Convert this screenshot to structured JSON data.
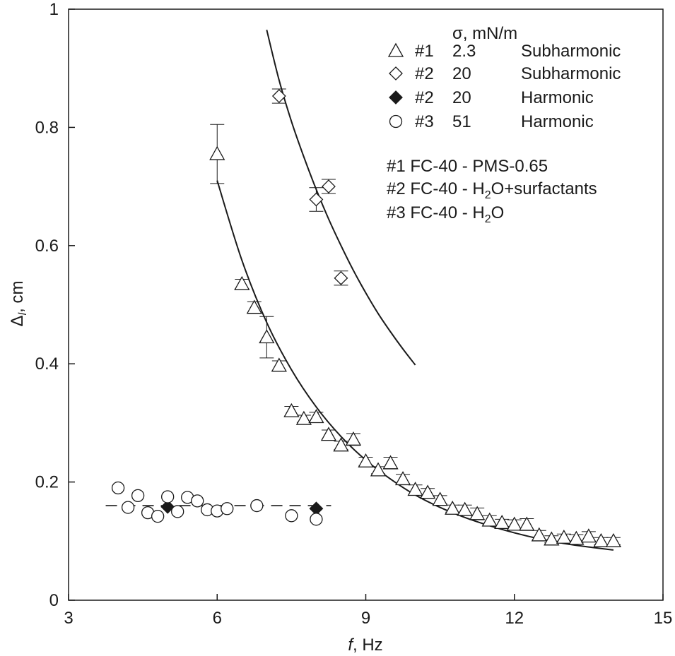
{
  "chart_data": {
    "type": "scatter",
    "xlabel": {
      "italic": "f",
      "rest": ", Hz"
    },
    "ylabel": {
      "main": "Δ",
      "sub": "l",
      "rest": ", cm"
    },
    "xlim": [
      3,
      15
    ],
    "ylim": [
      0,
      1
    ],
    "xticks": [
      "3",
      "6",
      "9",
      "12",
      "15"
    ],
    "yticks": [
      "0",
      "0.2",
      "0.4",
      "0.6",
      "0.8",
      "1"
    ],
    "grid": false,
    "legend": {
      "placement": "top-right",
      "header": "σ, mN/m",
      "entries": [
        {
          "marker": "triangle-open",
          "id": "#1",
          "sigma": "2.3",
          "mode": "Subharmonic"
        },
        {
          "marker": "diamond-open",
          "id": "#2",
          "sigma": "20",
          "mode": "Subharmonic"
        },
        {
          "marker": "diamond-filled",
          "id": "#2",
          "sigma": "20",
          "mode": "Harmonic"
        },
        {
          "marker": "circle-open",
          "id": "#3",
          "sigma": "51",
          "mode": "Harmonic"
        }
      ],
      "notes": [
        {
          "text": "#1 FC-40 - PMS-0.65"
        },
        {
          "text": "#2 FC-40 - H",
          "sub": "2",
          "after": "O+surfactants"
        },
        {
          "text": "#3 FC-40 - H",
          "sub": "2",
          "after": "O"
        }
      ]
    },
    "series": [
      {
        "marker": "triangle-open",
        "points": [
          {
            "x": 6.0,
            "y": 0.755,
            "err": 0.05
          },
          {
            "x": 6.5,
            "y": 0.535,
            "err": 0.008
          },
          {
            "x": 6.75,
            "y": 0.495,
            "err": 0.01
          },
          {
            "x": 7.0,
            "y": 0.445,
            "err": 0.035
          },
          {
            "x": 7.25,
            "y": 0.397,
            "err": 0.008
          },
          {
            "x": 7.5,
            "y": 0.32,
            "err": 0.008
          },
          {
            "x": 7.75,
            "y": 0.307,
            "err": 0.006
          },
          {
            "x": 8.0,
            "y": 0.31,
            "err": 0.008
          },
          {
            "x": 8.25,
            "y": 0.28,
            "err": 0.008
          },
          {
            "x": 8.5,
            "y": 0.262,
            "err": 0.007
          },
          {
            "x": 8.75,
            "y": 0.272,
            "err": 0.01
          },
          {
            "x": 9.0,
            "y": 0.235,
            "err": 0.007
          },
          {
            "x": 9.25,
            "y": 0.22,
            "err": 0.006
          },
          {
            "x": 9.5,
            "y": 0.232,
            "err": 0.01
          },
          {
            "x": 9.75,
            "y": 0.205,
            "err": 0.008
          },
          {
            "x": 10.0,
            "y": 0.187,
            "err": 0.008
          },
          {
            "x": 10.25,
            "y": 0.182,
            "err": 0.007
          },
          {
            "x": 10.5,
            "y": 0.17,
            "err": 0.007
          },
          {
            "x": 10.75,
            "y": 0.155,
            "err": 0.006
          },
          {
            "x": 11.0,
            "y": 0.153,
            "err": 0.008
          },
          {
            "x": 11.25,
            "y": 0.146,
            "err": 0.01
          },
          {
            "x": 11.5,
            "y": 0.135,
            "err": 0.008
          },
          {
            "x": 11.75,
            "y": 0.131,
            "err": 0.006
          },
          {
            "x": 12.0,
            "y": 0.128,
            "err": 0.008
          },
          {
            "x": 12.25,
            "y": 0.128,
            "err": 0.01
          },
          {
            "x": 12.5,
            "y": 0.11,
            "err": 0.008
          },
          {
            "x": 12.75,
            "y": 0.103,
            "err": 0.006
          },
          {
            "x": 13.0,
            "y": 0.106,
            "err": 0.006
          },
          {
            "x": 13.25,
            "y": 0.104,
            "err": 0.007
          },
          {
            "x": 13.5,
            "y": 0.108,
            "err": 0.008
          },
          {
            "x": 13.75,
            "y": 0.1,
            "err": 0.006
          },
          {
            "x": 14.0,
            "y": 0.1,
            "err": 0.006
          }
        ]
      },
      {
        "marker": "diamond-open",
        "points": [
          {
            "x": 7.25,
            "y": 0.853,
            "err": 0.012
          },
          {
            "x": 8.0,
            "y": 0.678,
            "err": 0.02
          },
          {
            "x": 8.25,
            "y": 0.7,
            "err": 0.012
          },
          {
            "x": 8.5,
            "y": 0.545,
            "err": 0.012
          }
        ]
      },
      {
        "marker": "diamond-filled",
        "points": [
          {
            "x": 5.0,
            "y": 0.158
          },
          {
            "x": 8.0,
            "y": 0.155
          }
        ]
      },
      {
        "marker": "circle-open",
        "points": [
          {
            "x": 4.0,
            "y": 0.19
          },
          {
            "x": 4.2,
            "y": 0.157
          },
          {
            "x": 4.4,
            "y": 0.177
          },
          {
            "x": 4.6,
            "y": 0.148
          },
          {
            "x": 4.8,
            "y": 0.142
          },
          {
            "x": 5.0,
            "y": 0.175
          },
          {
            "x": 5.2,
            "y": 0.15
          },
          {
            "x": 5.4,
            "y": 0.174
          },
          {
            "x": 5.6,
            "y": 0.168
          },
          {
            "x": 5.8,
            "y": 0.153
          },
          {
            "x": 6.0,
            "y": 0.151
          },
          {
            "x": 6.2,
            "y": 0.155
          },
          {
            "x": 6.8,
            "y": 0.16
          },
          {
            "x": 7.5,
            "y": 0.143
          },
          {
            "x": 8.0,
            "y": 0.137
          }
        ]
      }
    ],
    "fits": [
      {
        "style": "solid",
        "x": [
          6.0,
          6.5,
          7.0,
          7.5,
          8.0,
          8.5,
          9.0,
          9.5,
          10.0,
          10.5,
          11.0,
          11.5,
          12.0,
          12.5,
          13.0,
          13.5,
          14.0
        ],
        "y": [
          0.71,
          0.575,
          0.47,
          0.39,
          0.327,
          0.277,
          0.237,
          0.205,
          0.178,
          0.157,
          0.14,
          0.126,
          0.114,
          0.104,
          0.096,
          0.09,
          0.085
        ]
      },
      {
        "style": "solid",
        "x": [
          7.0,
          7.25,
          7.5,
          7.75,
          8.0,
          8.25,
          8.5,
          8.75,
          9.0,
          9.25,
          9.5,
          9.75,
          10.0
        ],
        "y": [
          0.965,
          0.88,
          0.81,
          0.75,
          0.695,
          0.645,
          0.6,
          0.558,
          0.52,
          0.485,
          0.454,
          0.425,
          0.398
        ]
      },
      {
        "style": "dashed",
        "x": [
          3.75,
          8.3
        ],
        "y": [
          0.16,
          0.16
        ]
      }
    ]
  }
}
